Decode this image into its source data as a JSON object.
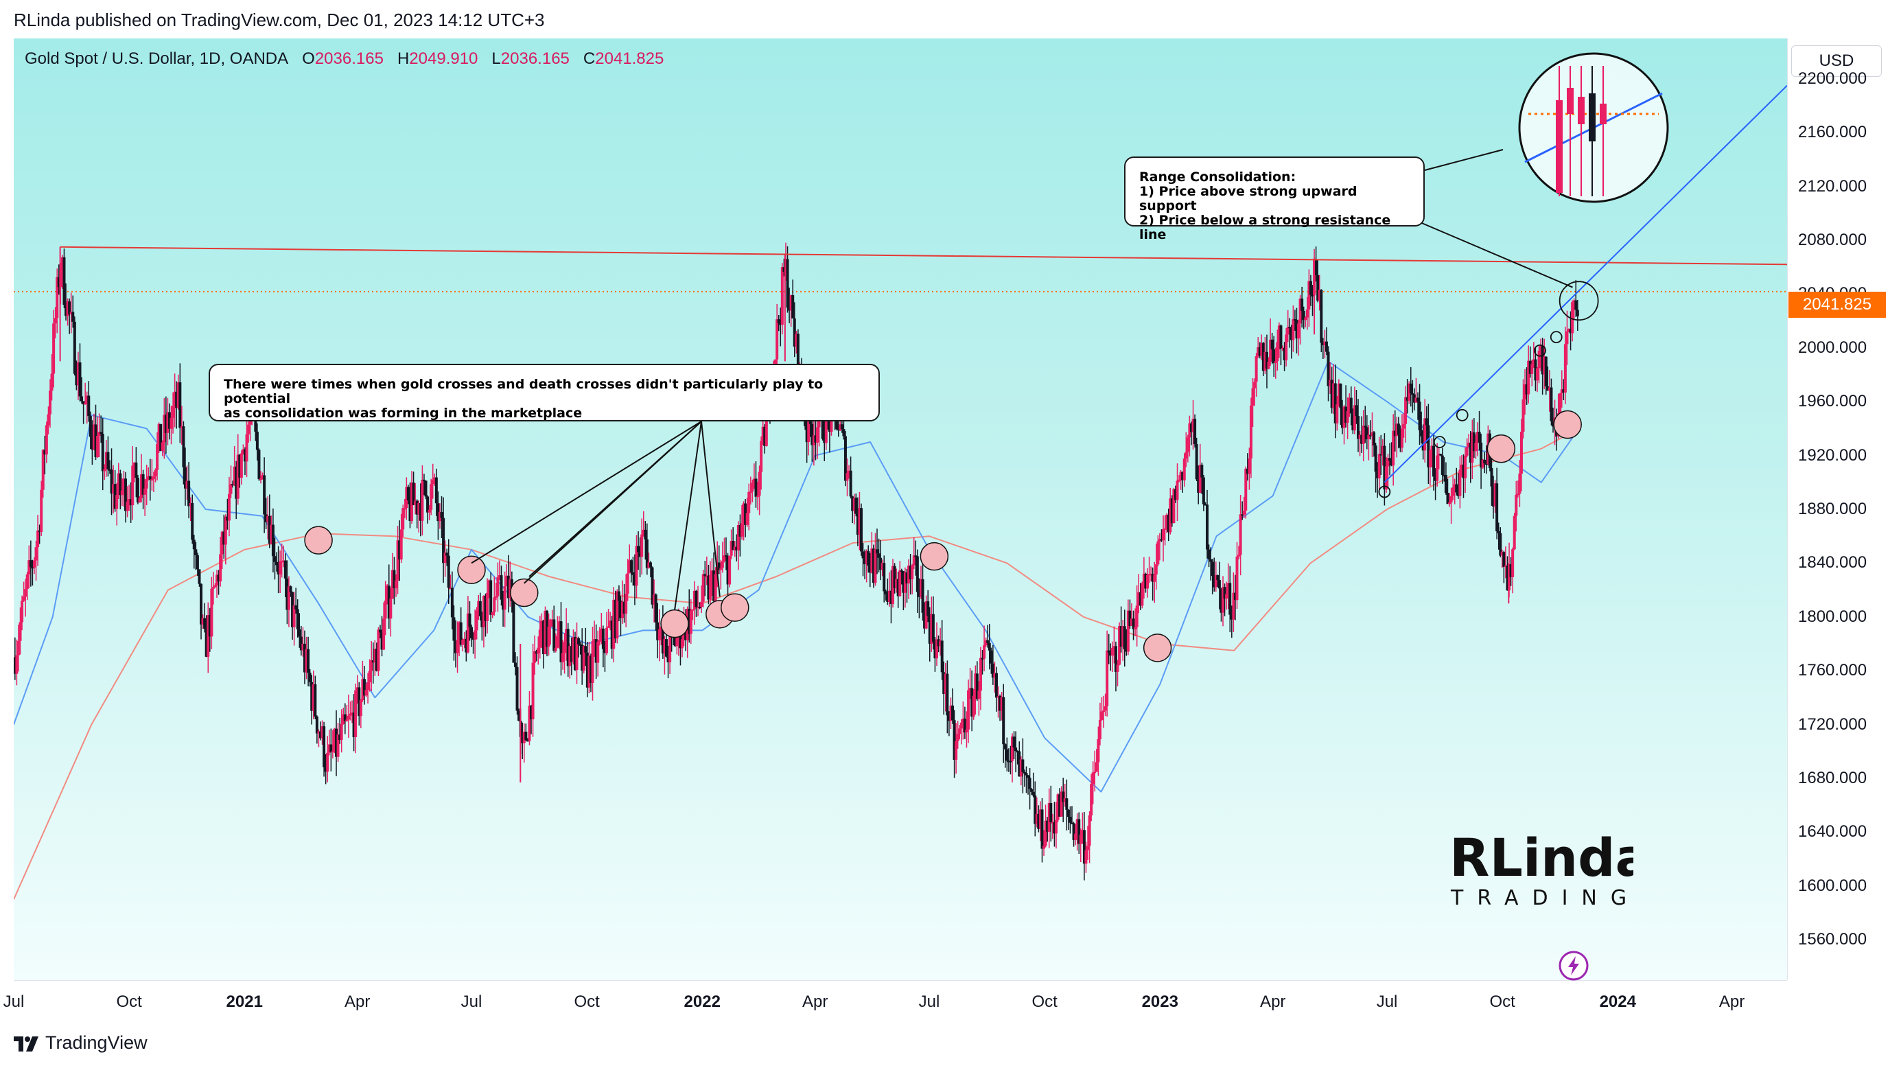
{
  "header": {
    "publisher_line": "RLinda published on TradingView.com, Dec 01, 2023 14:12 UTC+3"
  },
  "symbol": {
    "name": "Gold Spot / U.S. Dollar, 1D, OANDA",
    "open_label": "O",
    "open": "2036.165",
    "high_label": "H",
    "high": "2049.910",
    "low_label": "L",
    "low": "2036.165",
    "close_label": "C",
    "close": "2041.825"
  },
  "axis": {
    "currency": "USD",
    "last_price": "2041.825"
  },
  "annotations": {
    "consolidation_note": "There were times when gold crosses and death crosses didn't particularly play to potential\nas consolidation was forming in the marketplace",
    "range_note": "Range Consolidation:\n1) Price above strong upward support\n2) Price below a strong resistance line"
  },
  "logo": {
    "line1": "RLinda",
    "line2": "TRADING"
  },
  "footer": {
    "brand": "TradingView"
  },
  "colors": {
    "up": "#e91e63",
    "down": "#131722",
    "resistance": "#e53935",
    "support": "#2962ff",
    "ma_fast": "#5b9cf6",
    "ma_slow": "#f28b82",
    "last_price": "#ff6d00",
    "cross_marker": "#f4b6bb"
  },
  "icons": [
    "lightning-icon",
    "tradingview-logo-icon"
  ],
  "chart_data": {
    "type": "line",
    "title": "Gold Spot / U.S. Dollar, 1D, OANDA",
    "xlabel": "",
    "ylabel": "",
    "ylim": [
      1530,
      2230
    ],
    "x_range": [
      "2020-07-01",
      "2024-05-15"
    ],
    "y_ticks": [
      "2200.000",
      "2160.000",
      "2120.000",
      "2080.000",
      "2040.000",
      "2000.000",
      "1960.000",
      "1920.000",
      "1880.000",
      "1840.000",
      "1800.000",
      "1760.000",
      "1720.000",
      "1680.000",
      "1640.000",
      "1600.000",
      "1560.000"
    ],
    "x_ticks": [
      {
        "date": "2020-07-01",
        "label": "Jul",
        "bold": false
      },
      {
        "date": "2020-10-01",
        "label": "Oct",
        "bold": false
      },
      {
        "date": "2021-01-01",
        "label": "2021",
        "bold": true
      },
      {
        "date": "2021-04-01",
        "label": "Apr",
        "bold": false
      },
      {
        "date": "2021-07-01",
        "label": "Jul",
        "bold": false
      },
      {
        "date": "2021-10-01",
        "label": "Oct",
        "bold": false
      },
      {
        "date": "2022-01-01",
        "label": "2022",
        "bold": true
      },
      {
        "date": "2022-04-01",
        "label": "Apr",
        "bold": false
      },
      {
        "date": "2022-07-01",
        "label": "Jul",
        "bold": false
      },
      {
        "date": "2022-10-01",
        "label": "Oct",
        "bold": false
      },
      {
        "date": "2023-01-01",
        "label": "2023",
        "bold": true
      },
      {
        "date": "2023-04-01",
        "label": "Apr",
        "bold": false
      },
      {
        "date": "2023-07-01",
        "label": "Jul",
        "bold": false
      },
      {
        "date": "2023-10-01",
        "label": "Oct",
        "bold": false
      },
      {
        "date": "2024-01-01",
        "label": "2024",
        "bold": true
      },
      {
        "date": "2024-04-01",
        "label": "Apr",
        "bold": false
      }
    ],
    "series": [
      {
        "type": "line",
        "x": [
          "2020-07-01",
          "2020-07-20",
          "2020-08-07",
          "2020-08-25",
          "2020-09-20",
          "2020-10-15",
          "2020-11-09",
          "2020-11-30",
          "2020-12-20",
          "2021-01-06",
          "2021-01-25",
          "2021-02-15",
          "2021-03-08",
          "2021-03-31",
          "2021-04-20",
          "2021-05-10",
          "2021-06-01",
          "2021-06-20",
          "2021-07-10",
          "2021-08-01",
          "2021-08-10",
          "2021-08-25",
          "2021-09-15",
          "2021-10-01",
          "2021-10-20",
          "2021-11-16",
          "2021-12-01",
          "2021-12-15",
          "2022-01-05",
          "2022-01-25",
          "2022-02-15",
          "2022-03-08",
          "2022-03-25",
          "2022-04-18",
          "2022-05-10",
          "2022-05-30",
          "2022-06-20",
          "2022-07-10",
          "2022-07-21",
          "2022-08-15",
          "2022-09-01",
          "2022-09-28",
          "2022-10-15",
          "2022-11-03",
          "2022-11-20",
          "2022-12-10",
          "2023-01-01",
          "2023-01-26",
          "2023-02-15",
          "2023-02-28",
          "2023-03-20",
          "2023-04-13",
          "2023-05-04",
          "2023-05-20",
          "2023-06-10",
          "2023-06-29",
          "2023-07-20",
          "2023-08-05",
          "2023-08-21",
          "2023-09-05",
          "2023-09-20",
          "2023-10-06",
          "2023-10-20",
          "2023-11-01",
          "2023-11-13",
          "2023-11-22",
          "2023-12-01"
        ],
        "y": [
          1770,
          1860,
          2065,
          1960,
          1890,
          1905,
          1960,
          1775,
          1880,
          1950,
          1850,
          1780,
          1690,
          1730,
          1785,
          1880,
          1895,
          1780,
          1810,
          1820,
          1690,
          1790,
          1780,
          1760,
          1790,
          1860,
          1770,
          1790,
          1820,
          1845,
          1900,
          2060,
          1940,
          1950,
          1850,
          1820,
          1830,
          1770,
          1700,
          1770,
          1710,
          1640,
          1660,
          1630,
          1760,
          1800,
          1845,
          1940,
          1820,
          1810,
          1990,
          2010,
          2050,
          1960,
          1940,
          1910,
          1960,
          1920,
          1890,
          1930,
          1920,
          1820,
          1980,
          1990,
          1940,
          2000,
          2041.825
        ]
      },
      {
        "type": "ma_fast",
        "x": [
          "2020-07-01",
          "2020-08-01",
          "2020-09-01",
          "2020-10-15",
          "2020-12-01",
          "2021-01-15",
          "2021-03-01",
          "2021-04-15",
          "2021-06-01",
          "2021-07-01",
          "2021-08-15",
          "2021-10-01",
          "2021-11-15",
          "2022-01-01",
          "2022-02-15",
          "2022-04-01",
          "2022-05-15",
          "2022-07-01",
          "2022-08-15",
          "2022-10-01",
          "2022-11-15",
          "2023-01-01",
          "2023-02-15",
          "2023-04-01",
          "2023-05-15",
          "2023-07-01",
          "2023-08-15",
          "2023-10-01",
          "2023-11-01",
          "2023-12-01"
        ],
        "y": [
          1720,
          1800,
          1950,
          1940,
          1880,
          1875,
          1810,
          1740,
          1790,
          1850,
          1800,
          1780,
          1790,
          1790,
          1820,
          1920,
          1930,
          1850,
          1790,
          1710,
          1670,
          1750,
          1860,
          1890,
          1990,
          1960,
          1930,
          1920,
          1900,
          1940
        ]
      },
      {
        "type": "ma_slow",
        "x": [
          "2020-07-01",
          "2020-09-01",
          "2020-11-01",
          "2021-01-01",
          "2021-03-01",
          "2021-05-01",
          "2021-07-01",
          "2021-09-01",
          "2021-11-01",
          "2022-01-01",
          "2022-03-01",
          "2022-05-01",
          "2022-07-01",
          "2022-09-01",
          "2022-11-01",
          "2023-01-01",
          "2023-03-01",
          "2023-05-01",
          "2023-07-01",
          "2023-09-01",
          "2023-11-01",
          "2023-12-01"
        ],
        "y": [
          1590,
          1720,
          1820,
          1850,
          1862,
          1860,
          1850,
          1830,
          1815,
          1810,
          1830,
          1855,
          1860,
          1840,
          1800,
          1780,
          1775,
          1840,
          1880,
          1910,
          1925,
          1940
        ]
      }
    ],
    "resistance_line": {
      "x": [
        "2020-08-07",
        "2024-05-15"
      ],
      "y": [
        2075,
        2062
      ]
    },
    "support_line": {
      "x": [
        "2023-06-29",
        "2024-05-15"
      ],
      "y": [
        1900,
        2195
      ]
    },
    "cross_markers": [
      {
        "x": "2021-03-01",
        "y": 1857
      },
      {
        "x": "2021-07-01",
        "y": 1835
      },
      {
        "x": "2021-08-12",
        "y": 1818
      },
      {
        "x": "2021-12-10",
        "y": 1795
      },
      {
        "x": "2022-01-15",
        "y": 1802
      },
      {
        "x": "2022-01-27",
        "y": 1807
      },
      {
        "x": "2022-07-05",
        "y": 1845
      },
      {
        "x": "2022-12-30",
        "y": 1777
      },
      {
        "x": "2023-09-30",
        "y": 1925
      },
      {
        "x": "2023-11-22",
        "y": 1943
      }
    ],
    "touch_markers": [
      {
        "x": "2023-06-29",
        "y": 1893
      },
      {
        "x": "2023-08-12",
        "y": 1930
      },
      {
        "x": "2023-08-30",
        "y": 1950
      },
      {
        "x": "2023-10-31",
        "y": 1998
      },
      {
        "x": "2023-11-13",
        "y": 2008
      },
      {
        "x": "2023-12-01",
        "y": 2035
      }
    ]
  }
}
